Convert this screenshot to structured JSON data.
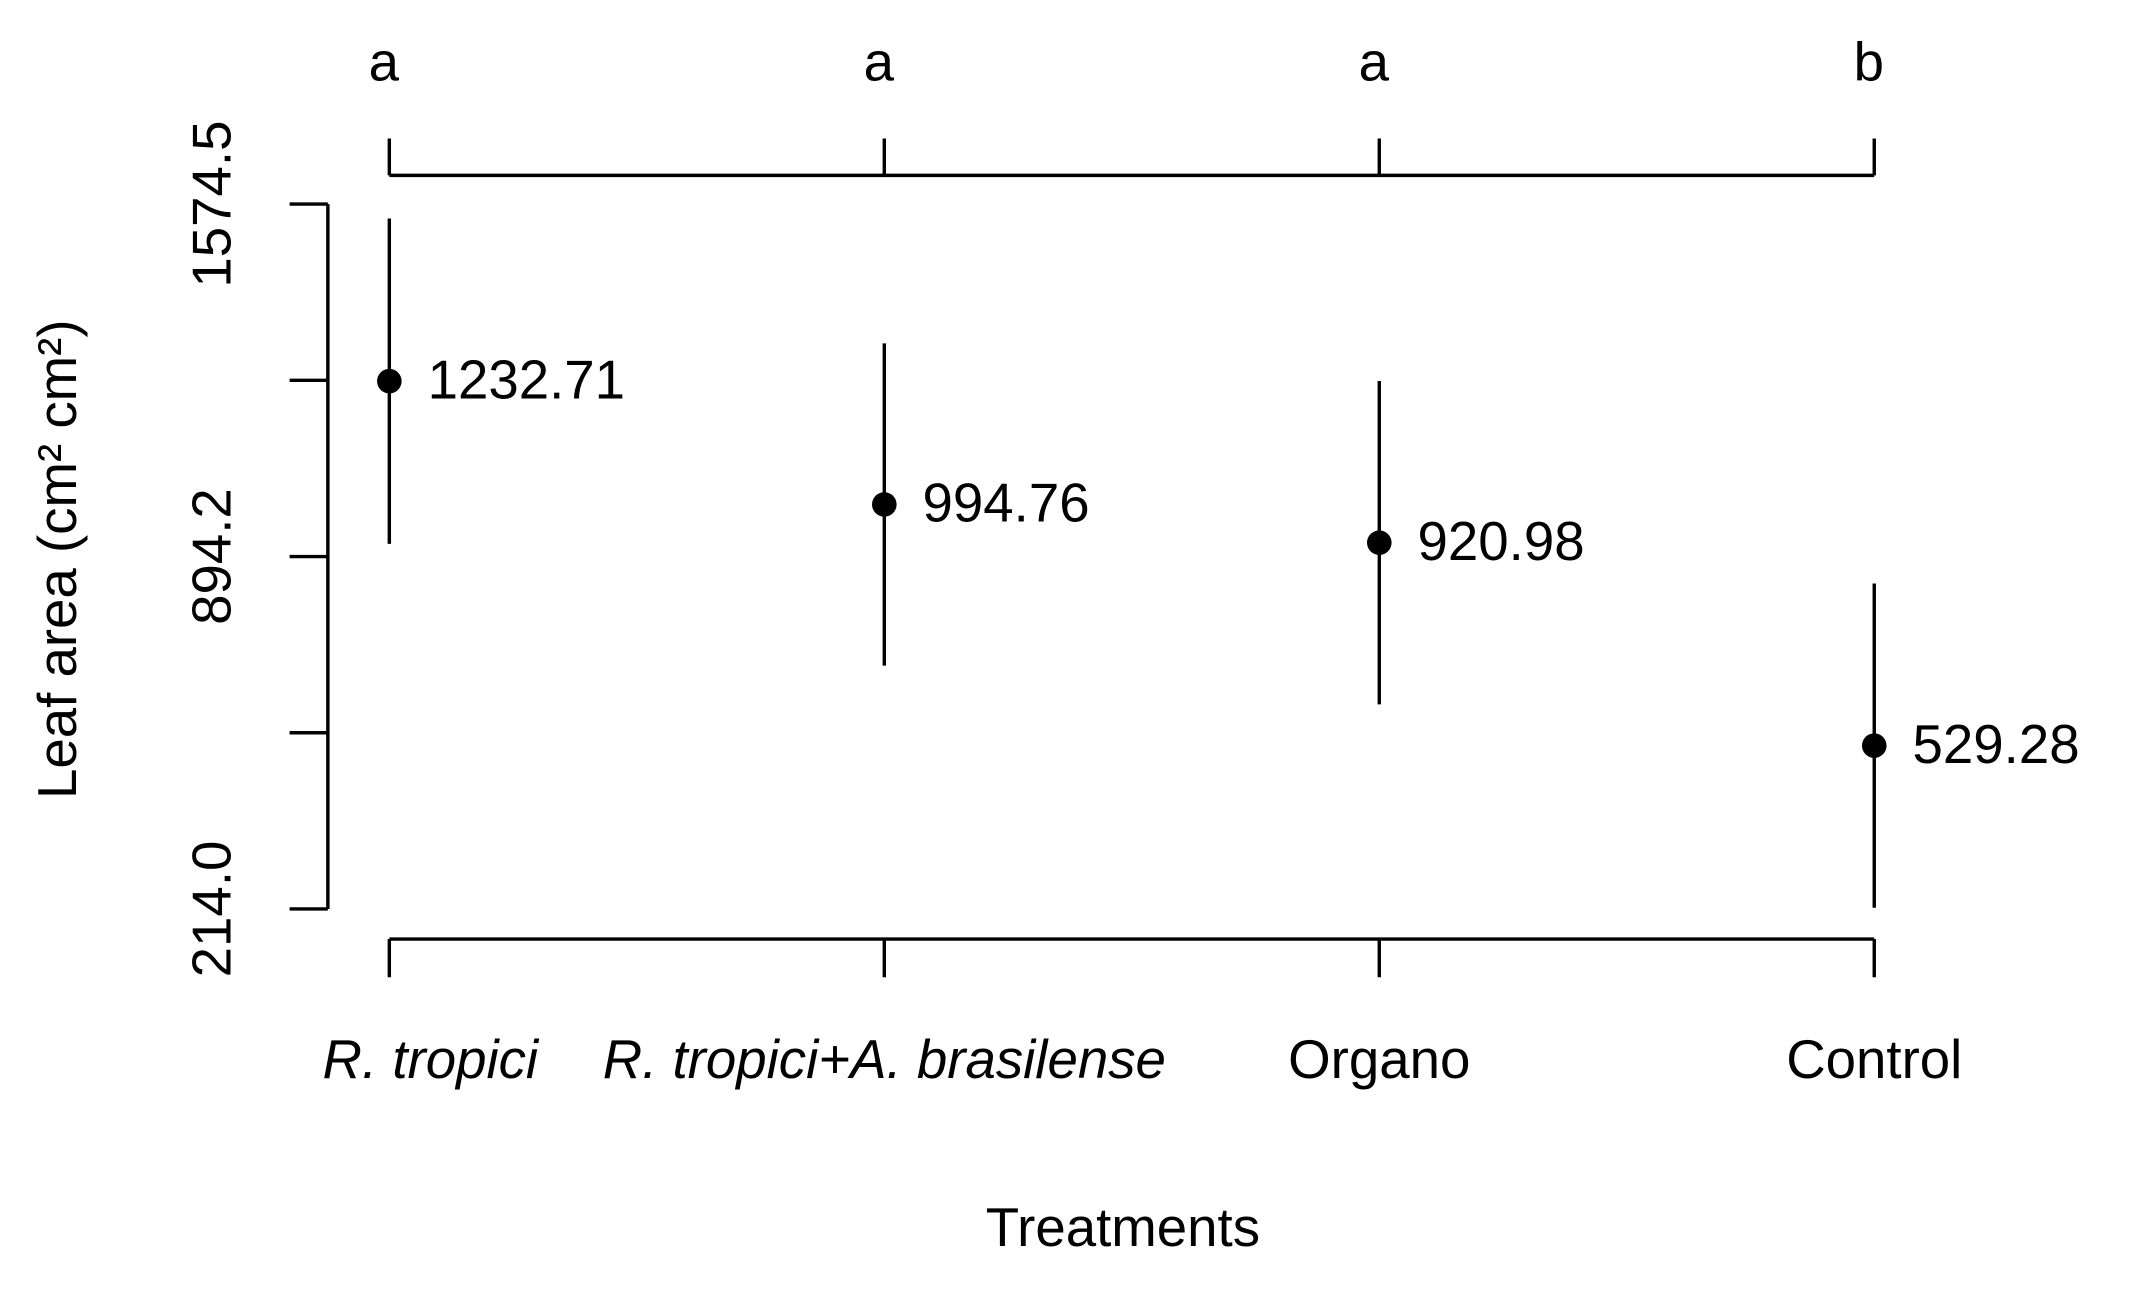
{
  "chart_data": {
    "type": "errorbar",
    "x_label": "Treatments",
    "y_label": "Leaf area (cm² cm²)",
    "categories": [
      "R. tropici",
      "R. tropici+A. brasilense",
      "Organo",
      "Control"
    ],
    "italic_categories": [
      true,
      true,
      false,
      false
    ],
    "group_letters": [
      "a",
      "a",
      "a",
      "b"
    ],
    "values": [
      1232.71,
      994.76,
      920.98,
      529.28
    ],
    "errors": [
      314,
      311,
      312,
      313
    ],
    "color": "#000000",
    "ylim": [
      214,
      1574.5
    ],
    "yticks": [
      {
        "value": 214,
        "label": "214.0"
      },
      894.2,
      1574.5
    ],
    "minor_yticks": [
      554.1,
      1234.35
    ]
  }
}
